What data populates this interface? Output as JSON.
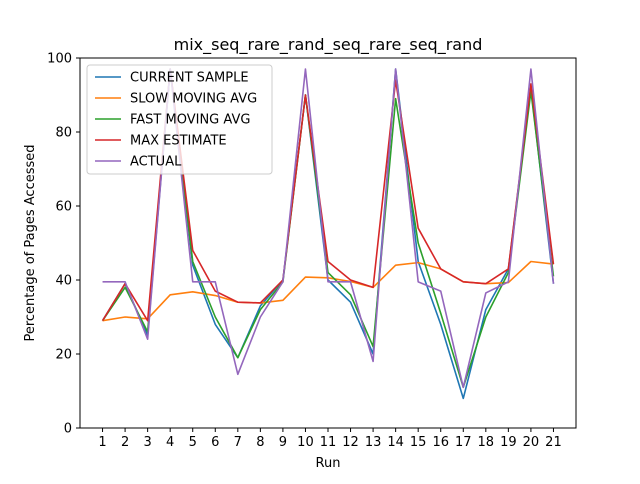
{
  "chart_data": {
    "type": "line",
    "title": "mix_seq_rare_rand_seq_rare_seq_rand",
    "xlabel": "Run",
    "ylabel": "Percentage of Pages Accessed",
    "x": [
      1,
      2,
      3,
      4,
      5,
      6,
      7,
      8,
      9,
      10,
      11,
      12,
      13,
      14,
      15,
      16,
      17,
      18,
      19,
      20,
      21
    ],
    "xticks": [
      "1",
      "2",
      "3",
      "4",
      "5",
      "6",
      "7",
      "8",
      "9",
      "10",
      "11",
      "12",
      "13",
      "14",
      "15",
      "16",
      "17",
      "18",
      "19",
      "20",
      "21"
    ],
    "xlim": [
      0.0,
      22.0
    ],
    "ylim": [
      0,
      100
    ],
    "yticks": [
      "0",
      "20",
      "40",
      "60",
      "80",
      "100"
    ],
    "grid": false,
    "legend_position": "top-left",
    "series": [
      {
        "name": "CURRENT SAMPLE",
        "color": "#1f77b4",
        "values": [
          29,
          39,
          25,
          97,
          44,
          28,
          19,
          33,
          40,
          90,
          40,
          34,
          20,
          97,
          45,
          28,
          8,
          32,
          43,
          92,
          39
        ]
      },
      {
        "name": "SLOW MOVING AVG",
        "color": "#ff7f0e",
        "values": [
          29,
          30,
          29.5,
          36,
          36.8,
          35.8,
          34,
          33.8,
          34.5,
          40.8,
          40.6,
          39.6,
          38,
          44,
          44.7,
          43,
          39.5,
          39,
          39.3,
          45,
          44.3
        ]
      },
      {
        "name": "FAST MOVING AVG",
        "color": "#2ca02c",
        "values": [
          29,
          38,
          26,
          97,
          45,
          30,
          19,
          32,
          39.5,
          90,
          42,
          36,
          22,
          89,
          50,
          31,
          11,
          30,
          42,
          91,
          41
        ]
      },
      {
        "name": "MAX ESTIMATE",
        "color": "#d62728",
        "values": [
          29,
          39,
          29,
          97,
          48,
          37,
          34,
          33.8,
          40,
          90,
          45,
          40,
          38,
          94,
          54,
          43,
          39.5,
          39,
          43,
          93,
          44.3
        ]
      },
      {
        "name": "ACTUAL",
        "color": "#9467bd",
        "values": [
          39.5,
          39.5,
          24,
          97,
          39.5,
          39.5,
          14.5,
          30,
          39.5,
          97,
          39.5,
          39.5,
          18,
          97,
          39.5,
          37,
          11,
          36.5,
          39.5,
          97,
          39
        ]
      }
    ]
  }
}
